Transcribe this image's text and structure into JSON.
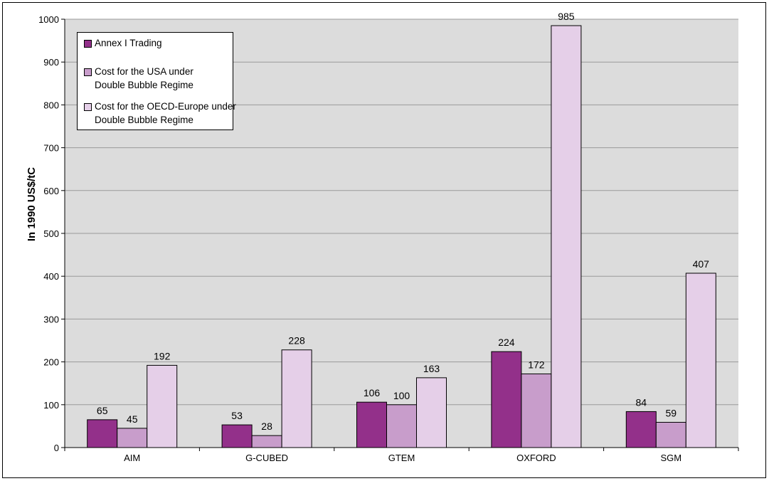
{
  "chart_data": {
    "type": "bar",
    "ylabel": "In 1990 US$/tC",
    "xlabel": "",
    "ylim": [
      0,
      1000
    ],
    "yticks": [
      0,
      100,
      200,
      300,
      400,
      500,
      600,
      700,
      800,
      900,
      1000
    ],
    "grid": true,
    "legend_position": "top-left",
    "categories": [
      "AIM",
      "G-CUBED",
      "GTEM",
      "OXFORD",
      "SGM"
    ],
    "series": [
      {
        "name": "Annex I Trading",
        "color": "#93308a",
        "values": [
          65,
          53,
          106,
          224,
          84
        ]
      },
      {
        "name": "Cost for the USA under Double Bubble Regime",
        "color": "#c89dcb",
        "values": [
          45,
          28,
          100,
          172,
          59
        ]
      },
      {
        "name": "Cost for the OECD-Europe under Double Bubble Regime",
        "color": "#e5cfe8",
        "values": [
          192,
          228,
          163,
          985,
          407
        ]
      }
    ]
  },
  "legend": {
    "items": [
      "Annex I Trading",
      "Cost for the USA under Double Bubble Regime",
      "Cost for the OECD-Europe under Double Bubble Regime"
    ]
  },
  "colors": {
    "plot_background": "#dcdcdc",
    "gridline": "#9a9a9a"
  }
}
